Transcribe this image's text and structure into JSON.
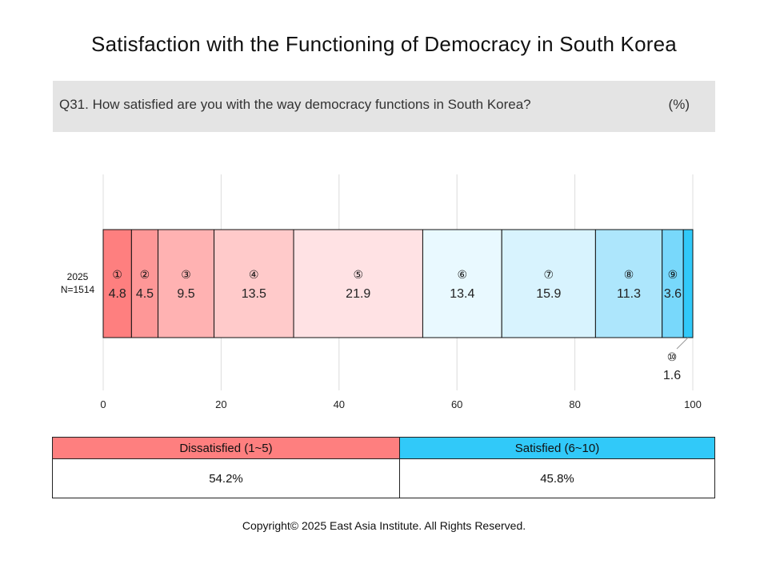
{
  "title": "Satisfaction with the Functioning of Democracy in South Korea",
  "question": {
    "text": "Q31. How satisfied are you with the way democracy functions in South Korea?",
    "unit": "(%)"
  },
  "chart_data": {
    "type": "bar",
    "orientation": "horizontal-stacked",
    "row_label": [
      "2025",
      "N=1514"
    ],
    "xlim": [
      0,
      100
    ],
    "xticks": [
      "0",
      "20",
      "40",
      "60",
      "80",
      "100"
    ],
    "grid": true,
    "series": [
      {
        "name": "①",
        "value": 4.8,
        "color": "#fe7f7f"
      },
      {
        "name": "②",
        "value": 4.5,
        "color": "#fe9797"
      },
      {
        "name": "③",
        "value": 9.5,
        "color": "#ffb2b2"
      },
      {
        "name": "④",
        "value": 13.5,
        "color": "#ffcaca"
      },
      {
        "name": "⑤",
        "value": 21.9,
        "color": "#ffe2e4"
      },
      {
        "name": "⑥",
        "value": 13.4,
        "color": "#e9f9ff"
      },
      {
        "name": "⑦",
        "value": 15.9,
        "color": "#d8f3fe"
      },
      {
        "name": "⑧",
        "value": 11.3,
        "color": "#ade6fc"
      },
      {
        "name": "⑨",
        "value": 3.6,
        "color": "#78d8fb"
      },
      {
        "name": "⑩",
        "value": 1.6,
        "color": "#31c9f9"
      }
    ]
  },
  "summary": {
    "headers": [
      "Dissatisfied (1~5)",
      "Satisfied (6~10)"
    ],
    "values": [
      "54.2%",
      "45.8%"
    ],
    "colors": [
      "#fe7f7f",
      "#31c9f9"
    ]
  },
  "footer": "Copyright© 2025 East Asia Institute. All Rights Reserved."
}
